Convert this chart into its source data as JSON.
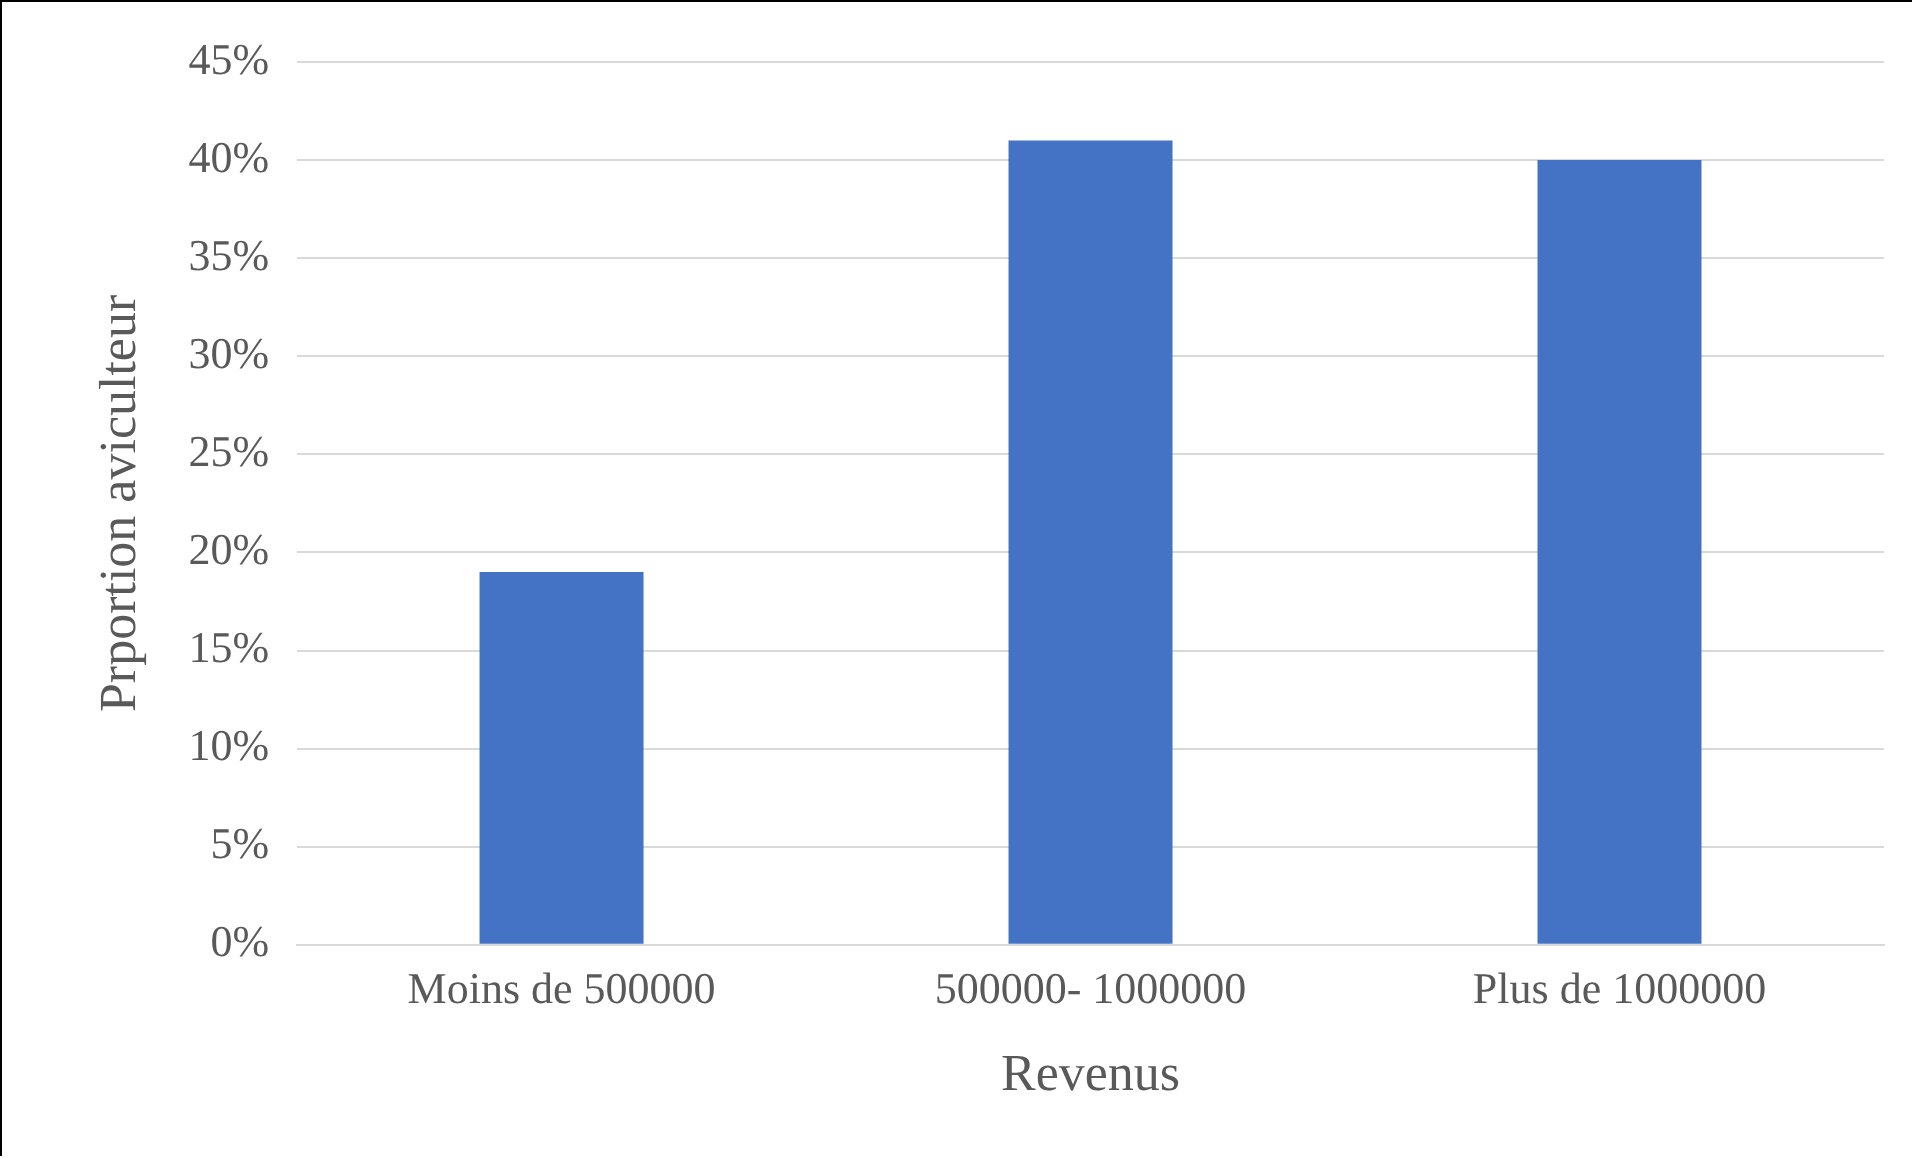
{
  "chart_data": {
    "type": "bar",
    "xlabel": "Revenus",
    "ylabel": "Prportion aviculteur",
    "categories": [
      "Moins de 500000",
      "500000- 1000000",
      "Plus de 1000000"
    ],
    "values": [
      19,
      41,
      40
    ],
    "color": "#4472c4",
    "ylim": [
      0,
      45
    ],
    "yticks": [
      {
        "value": 0,
        "label": "0%"
      },
      {
        "value": 5,
        "label": "5%"
      },
      {
        "value": 10,
        "label": "10%"
      },
      {
        "value": 15,
        "label": "15%"
      },
      {
        "value": 20,
        "label": "20%"
      },
      {
        "value": 25,
        "label": "25%"
      },
      {
        "value": 30,
        "label": "30%"
      },
      {
        "value": 35,
        "label": "35%"
      },
      {
        "value": 40,
        "label": "40%"
      },
      {
        "value": 45,
        "label": "45%"
      }
    ],
    "grid": "y",
    "legend": false
  }
}
